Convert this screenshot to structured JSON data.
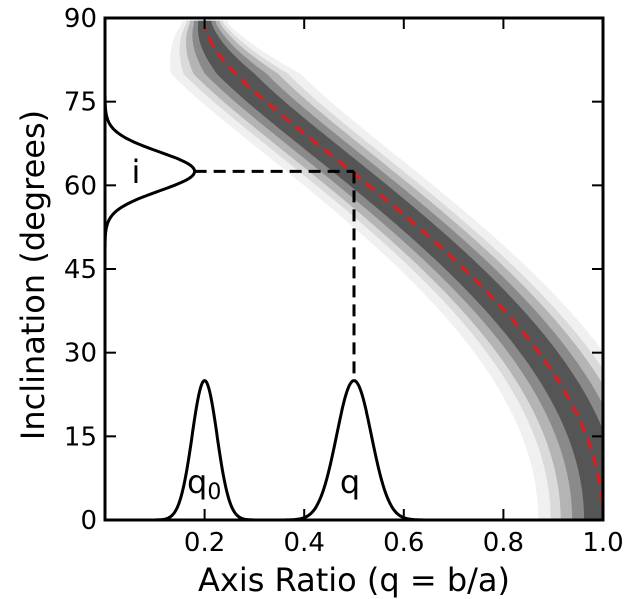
{
  "chart_data": {
    "type": "area",
    "xlabel": "Axis Ratio (q = b/a)",
    "ylabel": "Inclination (degrees)",
    "xlim": [
      0.0,
      1.0
    ],
    "ylim": [
      0,
      90
    ],
    "xticks": [
      0.2,
      0.4,
      0.6,
      0.8,
      1.0
    ],
    "xtick_labels": [
      "0.2",
      "0.4",
      "0.6",
      "0.8",
      "1.0"
    ],
    "yticks": [
      0,
      15,
      30,
      45,
      60,
      75,
      90
    ],
    "ytick_labels": [
      "0",
      "15",
      "30",
      "45",
      "60",
      "75",
      "90"
    ],
    "grid": false,
    "band_colors": [
      "#f0f0f0",
      "#dadada",
      "#b4b4b4",
      "#8a8a8a",
      "#555555"
    ],
    "band_halfwidths": [
      0.13,
      0.105,
      0.085,
      0.062,
      0.038
    ],
    "mean_curve": {
      "color": "#e31a1c",
      "q0": 0.2,
      "inclination_range": [
        0,
        88
      ],
      "style": "dashed"
    },
    "inclination_pdf": {
      "label": "i",
      "mean": 62.5,
      "sigma": 3.5,
      "height_q": 0.18
    },
    "q0_pdf": {
      "label": "q",
      "sub": "0",
      "mean": 0.2,
      "sigma": 0.025,
      "height_deg": 25
    },
    "q_pdf": {
      "label": "q",
      "mean": 0.5,
      "sigma": 0.035,
      "height_deg": 25
    },
    "guide_point": {
      "q": 0.5,
      "inclination": 62.5
    }
  }
}
